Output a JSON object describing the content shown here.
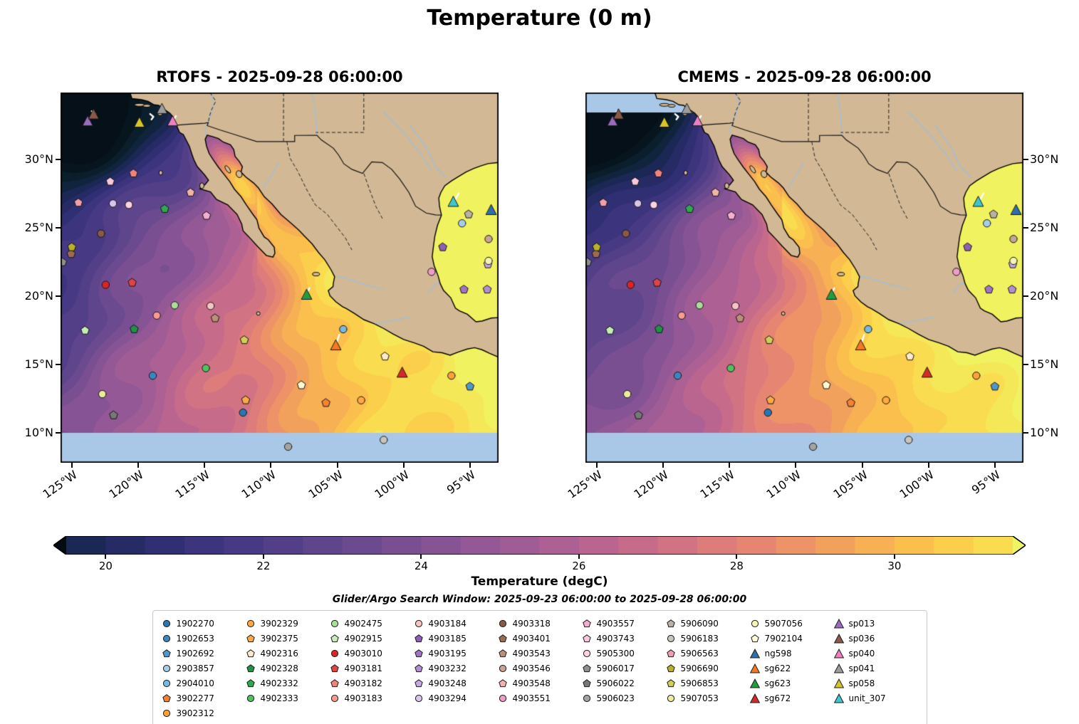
{
  "suptitle": "Temperature (0 m)",
  "panels": [
    {
      "model": "RTOFS",
      "title": "RTOFS - 2025-09-28 06:00:00"
    },
    {
      "model": "CMEMS",
      "title": "CMEMS - 2025-09-28 06:00:00"
    }
  ],
  "subtitle": "Glider/Argo Search Window: 2025-09-23 06:00:00 to 2025-09-28 06:00:00",
  "axes": {
    "lon_ticks": [
      "125°W",
      "120°W",
      "115°W",
      "110°W",
      "105°W",
      "100°W",
      "95°W"
    ],
    "lon_tick_values": [
      -125,
      -120,
      -115,
      -110,
      -105,
      -100,
      -95
    ],
    "lat_ticks": [
      "30°N",
      "25°N",
      "20°N",
      "15°N",
      "10°N"
    ],
    "lat_tick_values": [
      30,
      25,
      20,
      15,
      10
    ],
    "extent": {
      "lon_min": -125.85,
      "lon_max": -92.85,
      "lat_min": 7.83,
      "lat_max": 34.92
    }
  },
  "colorbar": {
    "label": "Temperature (degC)",
    "ticks": [
      20,
      22,
      24,
      26,
      28,
      30
    ],
    "vmin": 19.5,
    "vmax": 31.5,
    "level_step": 0.5,
    "extend": "both",
    "under_color": "#040b12",
    "over_color": "#edf563",
    "stops": [
      [
        18.0,
        "#061018"
      ],
      [
        19.0,
        "#0b2233"
      ],
      [
        20.0,
        "#20295f"
      ],
      [
        21.0,
        "#37317a"
      ],
      [
        22.0,
        "#4c3c86"
      ],
      [
        23.0,
        "#65488d"
      ],
      [
        24.0,
        "#7f5193"
      ],
      [
        25.0,
        "#995a95"
      ],
      [
        26.0,
        "#b36292"
      ],
      [
        27.0,
        "#cd6e88"
      ],
      [
        28.0,
        "#e28077"
      ],
      [
        29.0,
        "#f09961"
      ],
      [
        30.0,
        "#f9b74e"
      ],
      [
        31.0,
        "#fbd64a"
      ],
      [
        32.0,
        "#f3ee5d"
      ],
      [
        32.5,
        "#edf563"
      ]
    ]
  },
  "chart_data": {
    "type": "map-contourf",
    "variable": "Temperature",
    "depth": "0 m",
    "units": "degC",
    "valid_time": "2025-09-28 06:00:00",
    "models": [
      "RTOFS",
      "CMEMS"
    ],
    "search_window": {
      "start": "2025-09-23 06:00:00",
      "end": "2025-09-28 06:00:00"
    },
    "colors": {
      "land": "#d2b894",
      "no_data": "#a9c8e8",
      "figure": "#ffffff"
    },
    "platforms": [
      {
        "id": "1902270",
        "marker": "circle",
        "color": "#2577b5",
        "lon": -112.1,
        "lat": 11.5
      },
      {
        "id": "1902653",
        "marker": "circle",
        "color": "#3a86c0",
        "lon": -118.9,
        "lat": 14.2
      },
      {
        "id": "1902692",
        "marker": "pentagon",
        "color": "#4f97cb",
        "lon": -95.0,
        "lat": 13.4
      },
      {
        "id": "2903857",
        "marker": "circle",
        "color": "#a7cde6",
        "lon": -95.6,
        "lat": 25.35
      },
      {
        "id": "2904010",
        "marker": "circle",
        "color": "#7ab8e0",
        "lon": -104.55,
        "lat": 17.6
      },
      {
        "id": "3902277",
        "marker": "pentagon",
        "color": "#f58232",
        "lon": -105.85,
        "lat": 12.2
      },
      {
        "id": "3902312",
        "marker": "circle",
        "color": "#faa237",
        "lon": -96.4,
        "lat": 14.2
      },
      {
        "id": "3902329",
        "marker": "circle",
        "color": "#ffa93f",
        "lon": -103.2,
        "lat": 12.4
      },
      {
        "id": "3902375",
        "marker": "pentagon",
        "color": "#fbab44",
        "lon": -111.9,
        "lat": 12.4
      },
      {
        "id": "4902316",
        "marker": "pentagon",
        "color": "#fbe9c8",
        "lon": -101.4,
        "lat": 15.6
      },
      {
        "id": "4902328",
        "marker": "pentagon",
        "color": "#1e9246",
        "lon": -120.3,
        "lat": 17.6
      },
      {
        "id": "4902332",
        "marker": "pentagon",
        "color": "#2fa84f",
        "lon": -118.0,
        "lat": 26.4
      },
      {
        "id": "4902333",
        "marker": "circle",
        "color": "#52bf63",
        "lon": -114.9,
        "lat": 14.75
      },
      {
        "id": "4902475",
        "marker": "circle",
        "color": "#a8dd9a",
        "lon": -117.25,
        "lat": 19.35
      },
      {
        "id": "4902915",
        "marker": "pentagon",
        "color": "#c7ecba",
        "lon": -124.0,
        "lat": 17.5
      },
      {
        "id": "4903010",
        "marker": "circle",
        "color": "#d92527",
        "lon": -122.45,
        "lat": 20.85
      },
      {
        "id": "4903181",
        "marker": "pentagon",
        "color": "#e04444",
        "lon": -120.45,
        "lat": 21.0
      },
      {
        "id": "4903182",
        "marker": "pentagon",
        "color": "#f2827a",
        "lon": -120.35,
        "lat": 29.0
      },
      {
        "id": "4903183",
        "marker": "circle",
        "color": "#f79c90",
        "lon": -118.6,
        "lat": 18.6
      },
      {
        "id": "4903184",
        "marker": "circle",
        "color": "#f9c3c6",
        "lon": -114.55,
        "lat": 19.3
      },
      {
        "id": "4903185",
        "marker": "pentagon",
        "color": "#8d5fb5",
        "lon": -97.05,
        "lat": 23.6
      },
      {
        "id": "4903195",
        "marker": "pentagon",
        "color": "#9f74c4",
        "lon": -95.45,
        "lat": 20.5
      },
      {
        "id": "4903232",
        "marker": "pentagon",
        "color": "#b28ed2",
        "lon": -93.7,
        "lat": 20.5
      },
      {
        "id": "4903248",
        "marker": "pentagon",
        "color": "#c6a9e0",
        "lon": -93.65,
        "lat": 22.35
      },
      {
        "id": "4903294",
        "marker": "circle",
        "color": "#d9c4ec",
        "lon": -121.9,
        "lat": 26.8
      },
      {
        "id": "4903318",
        "marker": "circle",
        "color": "#8a5a48",
        "lon": -122.8,
        "lat": 24.6
      },
      {
        "id": "4903401",
        "marker": "pentagon",
        "color": "#9c6b55",
        "lon": -125.05,
        "lat": 23.1
      },
      {
        "id": "4903543",
        "marker": "pentagon",
        "color": "#bb8f78",
        "lon": -114.2,
        "lat": 18.4
      },
      {
        "id": "4903546",
        "marker": "circle",
        "color": "#c9a491",
        "lon": -93.6,
        "lat": 24.2
      },
      {
        "id": "4903548",
        "marker": "pentagon",
        "color": "#f2b3ad",
        "lon": -116.05,
        "lat": 27.6
      },
      {
        "id": "4903551",
        "marker": "circle",
        "color": "#ef9dc6",
        "lon": -97.9,
        "lat": 21.8
      },
      {
        "id": "4903557",
        "marker": "pentagon",
        "color": "#f4aed2",
        "lon": -114.85,
        "lat": 25.9
      },
      {
        "id": "4903743",
        "marker": "pentagon",
        "color": "#f8c8de",
        "lon": -122.1,
        "lat": 28.4
      },
      {
        "id": "5905300",
        "marker": "circle",
        "color": "#fbd3e4",
        "lon": -120.7,
        "lat": 26.7
      },
      {
        "id": "5906017",
        "marker": "pentagon",
        "color": "#8f8f8f",
        "lon": -125.7,
        "lat": 22.5
      },
      {
        "id": "5906022",
        "marker": "pentagon",
        "color": "#787878",
        "lon": -121.85,
        "lat": 11.3
      },
      {
        "id": "5906023",
        "marker": "circle",
        "color": "#a3a3a3",
        "lon": -108.7,
        "lat": 9.0
      },
      {
        "id": "5906090",
        "marker": "pentagon",
        "color": "#b9b1a6",
        "lon": -95.1,
        "lat": 26.0
      },
      {
        "id": "5906183",
        "marker": "circle",
        "color": "#c8c4be",
        "lon": -101.5,
        "lat": 9.5
      },
      {
        "id": "5906563",
        "marker": "pentagon",
        "color": "#ef9fb0",
        "lon": -124.5,
        "lat": 26.85
      },
      {
        "id": "5906690",
        "marker": "pentagon",
        "color": "#b9b02c",
        "lon": -125.0,
        "lat": 23.6
      },
      {
        "id": "5906853",
        "marker": "pentagon",
        "color": "#d3cc55",
        "lon": -112.0,
        "lat": 16.8
      },
      {
        "id": "5907053",
        "marker": "circle",
        "color": "#efeb9e",
        "lon": -122.7,
        "lat": 12.85
      },
      {
        "id": "5907056",
        "marker": "circle",
        "color": "#f6f3b3",
        "lon": -93.6,
        "lat": 22.6
      },
      {
        "id": "7902104",
        "marker": "pentagon",
        "color": "#fdfbd4",
        "lon": -107.7,
        "lat": 13.5
      },
      {
        "id": "ng598",
        "marker": "triangle",
        "color": "#2e6fac",
        "lon": -93.4,
        "lat": 26.3
      },
      {
        "id": "sg622",
        "marker": "triangle",
        "color": "#f57920",
        "lon": -105.1,
        "lat": 16.4
      },
      {
        "id": "sg623",
        "marker": "triangle",
        "color": "#1f9e40",
        "lon": -107.3,
        "lat": 20.1
      },
      {
        "id": "sg672",
        "marker": "triangle",
        "color": "#d42a28",
        "lon": -100.1,
        "lat": 14.4
      },
      {
        "id": "sp013",
        "marker": "triangle",
        "color": "#9a6bc0",
        "lon": -123.8,
        "lat": 32.8
      },
      {
        "id": "sp036",
        "marker": "triangle",
        "color": "#8a5a48",
        "lon": -123.35,
        "lat": 33.3
      },
      {
        "id": "sp040",
        "marker": "triangle",
        "color": "#ee7fc0",
        "lon": -117.4,
        "lat": 32.8
      },
      {
        "id": "sp041",
        "marker": "triangle",
        "color": "#9d9d9d",
        "lon": -118.2,
        "lat": 33.7
      },
      {
        "id": "sp058",
        "marker": "triangle",
        "color": "#d6c42e",
        "lon": -119.9,
        "lat": 32.7
      },
      {
        "id": "unit_307",
        "marker": "triangle",
        "color": "#3ec6cf",
        "lon": -96.25,
        "lat": 26.9
      }
    ],
    "tracks": [
      {
        "id": "sp013",
        "points": [
          [
            -123.5,
            33.55
          ],
          [
            -123.2,
            33.35
          ],
          [
            -123.35,
            33.1
          ]
        ]
      },
      {
        "id": "sp058",
        "points": [
          [
            -119.1,
            33.35
          ],
          [
            -118.85,
            33.15
          ],
          [
            -119.0,
            32.95
          ]
        ]
      },
      {
        "id": "sp040",
        "points": [
          [
            -117.15,
            33.2
          ],
          [
            -117.38,
            32.9
          ]
        ]
      },
      {
        "id": "sg623",
        "points": [
          [
            -107.1,
            20.6
          ],
          [
            -107.3,
            20.25
          ],
          [
            -107.25,
            20.0
          ]
        ]
      },
      {
        "id": "sg622",
        "points": [
          [
            -104.85,
            17.2
          ],
          [
            -105.0,
            16.75
          ],
          [
            -105.08,
            16.45
          ]
        ]
      },
      {
        "id": "unit_307",
        "points": [
          [
            -95.85,
            27.55
          ],
          [
            -96.05,
            27.2
          ],
          [
            -96.22,
            26.95
          ]
        ]
      }
    ]
  }
}
